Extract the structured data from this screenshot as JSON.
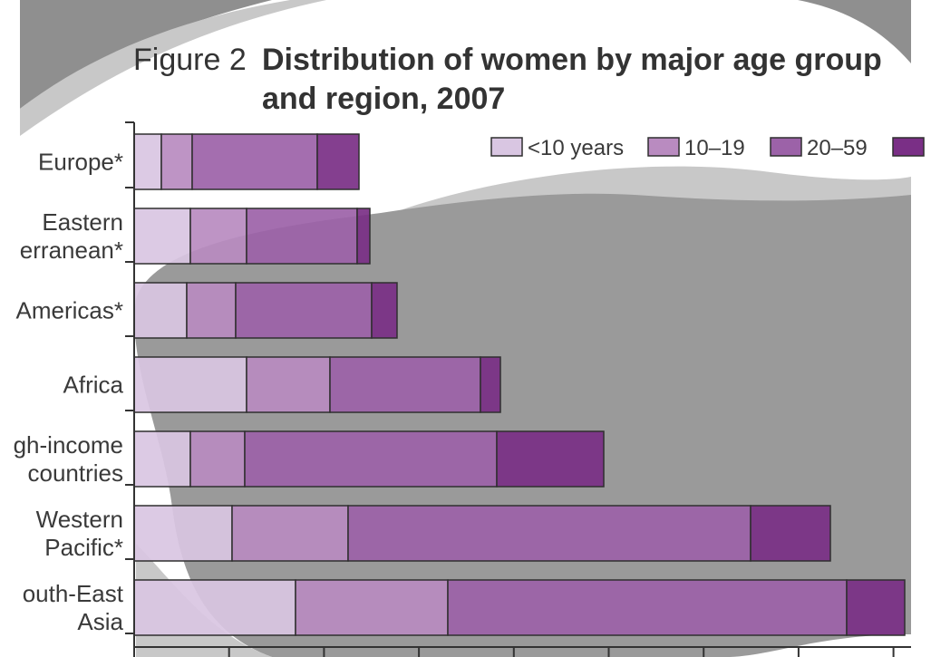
{
  "figure_number": "Figure 2",
  "title_line1": "Distribution of women by major age group",
  "title_line2": "and region, 2007",
  "colors": {
    "background": "#ffffff",
    "overlay_dark": "#8f8f8f",
    "overlay_light": "#c8c8c8",
    "axis": "#333333",
    "series": [
      "#d9c6e2",
      "#b98bc0",
      "#9c62a8",
      "#7a2f86"
    ]
  },
  "legend_labels": [
    "<10 years",
    "10–19",
    "20–59",
    ""
  ],
  "category_labels": [
    [
      "Europe*"
    ],
    [
      "Eastern",
      "erranean*"
    ],
    [
      "Americas*"
    ],
    [
      "Africa"
    ],
    [
      "gh-income",
      "countries"
    ],
    [
      "Western",
      "Pacific*"
    ],
    [
      "outh-East",
      "Asia"
    ]
  ],
  "chart_data": {
    "type": "bar",
    "orientation": "horizontal",
    "stacked": true,
    "title": "Distribution of women by major age group and region, 2007",
    "categories": [
      "Europe*",
      "Eastern Mediterranean*",
      "Americas*",
      "Africa",
      "High-income countries",
      "Western Pacific*",
      "South-East Asia"
    ],
    "series": [
      {
        "name": "<10 years",
        "values": [
          30,
          62,
          58,
          124,
          62,
          108,
          178
        ]
      },
      {
        "name": "10–19",
        "values": [
          34,
          62,
          54,
          92,
          60,
          128,
          168
        ]
      },
      {
        "name": "20–59",
        "values": [
          138,
          122,
          150,
          166,
          278,
          444,
          440
        ]
      },
      {
        "name": "",
        "values": [
          46,
          14,
          28,
          22,
          118,
          88,
          64
        ]
      }
    ],
    "xlim": [
      0,
      825
    ],
    "x_ticks_count": 9,
    "x_tick_labels_visible": false,
    "grid": false,
    "legend_position": "top-right"
  }
}
